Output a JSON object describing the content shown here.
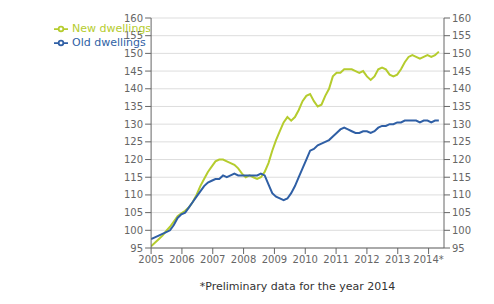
{
  "chart_data": {
    "type": "line",
    "xlabel": "*Preliminary data for the year 2014",
    "x": [
      2005,
      2005.1228026,
      2005.2456053,
      2005.3684079,
      2005.4912105,
      2005.6140132,
      2005.7368158,
      2005.8596184,
      2005.9824211,
      2006.1052237,
      2006.2280263,
      2006.3508289,
      2006.4736316,
      2006.5964342,
      2006.7192368,
      2006.8420395,
      2006.9648421,
      2007.0876447,
      2007.2104474,
      2007.33325,
      2007.4560526,
      2007.5788553,
      2007.7016579,
      2007.8244605,
      2007.9472632,
      2008.0700658,
      2008.1928684,
      2008.3156711,
      2008.4384737,
      2008.5612763,
      2008.6840789,
      2008.8068816,
      2008.9296842,
      2009.0524868,
      2009.1752895,
      2009.2980921,
      2009.4208947,
      2009.5436974,
      2009.6665,
      2009.7893026,
      2009.9121053,
      2010.0349079,
      2010.1577105,
      2010.2805132,
      2010.4033158,
      2010.5261184,
      2010.6489211,
      2010.7717237,
      2010.8945263,
      2011.0173289,
      2011.1401316,
      2011.2629342,
      2011.3857368,
      2011.5085395,
      2011.6313421,
      2011.7541447,
      2011.8769474,
      2011.99975,
      2012.1225526,
      2012.2453553,
      2012.3681579,
      2012.4909605,
      2012.6137632,
      2012.7365658,
      2012.8593684,
      2012.9821711,
      2013.1049737,
      2013.2277763,
      2013.3505789,
      2013.4733816,
      2013.5961842,
      2013.7189868,
      2013.8417895,
      2013.9645921,
      2014.0873947,
      2014.2101974,
      2014.333
    ],
    "series": [
      {
        "name": "New dwellings",
        "color": "#b5cc2e",
        "values": [
          95.5,
          96.5,
          97.5,
          98.5,
          99.8,
          101.0,
          102.5,
          104.0,
          104.8,
          105.5,
          106.5,
          108.0,
          110.0,
          112.5,
          114.5,
          116.5,
          118.0,
          119.5,
          120.0,
          120.0,
          119.5,
          119.0,
          118.5,
          117.5,
          116.0,
          115.0,
          115.5,
          115.0,
          114.5,
          115.0,
          116.5,
          119.0,
          122.5,
          125.5,
          128.0,
          130.5,
          132.0,
          131.0,
          132.0,
          134.0,
          136.5,
          138.0,
          138.5,
          136.5,
          135.0,
          135.5,
          138.0,
          140.0,
          143.5,
          144.5,
          144.5,
          145.5,
          145.5,
          145.5,
          145.0,
          144.5,
          145.0,
          143.5,
          142.5,
          143.5,
          145.5,
          146.0,
          145.5,
          144.0,
          143.5,
          144.0,
          145.5,
          147.5,
          149.0,
          149.5,
          149.0,
          148.5,
          149.0,
          149.5,
          149.0,
          149.5,
          150.5
        ]
      },
      {
        "name": "Old dwellings",
        "color": "#2f5fa5",
        "values": [
          97.5,
          98.0,
          98.5,
          99.0,
          99.5,
          100.0,
          101.5,
          103.5,
          104.5,
          105.0,
          106.5,
          108.0,
          109.5,
          111.0,
          112.5,
          113.5,
          114.0,
          114.5,
          114.5,
          115.5,
          115.0,
          115.5,
          116.0,
          115.5,
          115.5,
          115.5,
          115.5,
          115.5,
          115.5,
          116.0,
          115.5,
          113.0,
          110.5,
          109.5,
          109.0,
          108.5,
          109.0,
          110.5,
          112.5,
          115.0,
          117.5,
          120.0,
          122.5,
          123.0,
          124.0,
          124.5,
          125.0,
          125.5,
          126.5,
          127.5,
          128.5,
          129.0,
          128.5,
          128.0,
          127.5,
          127.5,
          128.0,
          128.0,
          127.5,
          128.0,
          129.0,
          129.5,
          129.5,
          130.0,
          130.0,
          130.5,
          130.5,
          131.0,
          131.0,
          131.0,
          131.0,
          130.5,
          131.0,
          131.0,
          130.5,
          131.0,
          131.0
        ]
      }
    ],
    "xlim": [
      2005,
      2014.5
    ],
    "xticks": [
      2005,
      2006,
      2007,
      2008,
      2009,
      2010,
      2011,
      2012,
      2013,
      {
        "value": 2014,
        "label": "2014*"
      }
    ],
    "ylim": [
      95,
      160
    ],
    "yticks": [
      95,
      100,
      105,
      110,
      115,
      120,
      125,
      130,
      135,
      140,
      145,
      150,
      155,
      160
    ],
    "y2lim": [
      95,
      160
    ],
    "y2ticks": [
      95,
      100,
      105,
      110,
      115,
      120,
      125,
      130,
      135,
      140,
      145,
      150,
      155,
      160
    ],
    "grid": "y",
    "legend": "upper left"
  }
}
